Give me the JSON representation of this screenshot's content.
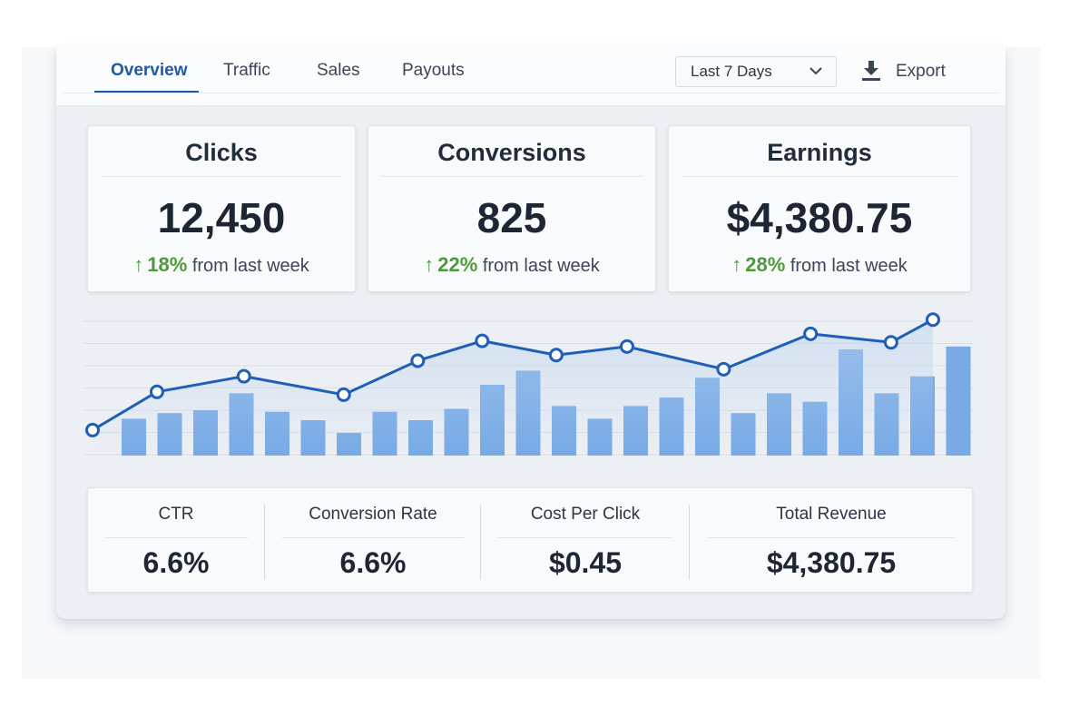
{
  "colors": {
    "accent": "#1e5aa8",
    "positive": "#4e9a3a",
    "bar": "#6ea4e4",
    "line": "#1f5fb8"
  },
  "tabs": [
    {
      "label": "Overview",
      "active": true
    },
    {
      "label": "Traffic",
      "active": false
    },
    {
      "label": "Sales",
      "active": false
    },
    {
      "label": "Payouts",
      "active": false
    }
  ],
  "toolbar": {
    "range_label": "Last 7 Days",
    "range_icon": "chevron-down-icon",
    "export_label": "Export",
    "export_icon": "download-icon"
  },
  "kpis": [
    {
      "title": "Clicks",
      "value": "12,450",
      "change_pct": "18",
      "change_suffix": "%",
      "change_text": "from last week"
    },
    {
      "title": "Conversions",
      "value": "825",
      "change_pct": "22",
      "change_suffix": "%",
      "change_text": "from last week"
    },
    {
      "title": "Earnings",
      "value": "$4,380.75",
      "change_pct": "28",
      "change_suffix": "%",
      "change_text": "from last week"
    }
  ],
  "chart_data": {
    "type": "bar",
    "grid": true,
    "ylim": [
      0,
      100
    ],
    "bars": [
      26,
      30,
      32,
      44,
      31,
      25,
      16,
      31,
      25,
      33,
      50,
      60,
      35,
      26,
      35,
      41,
      55,
      30,
      44,
      38,
      75,
      44,
      56,
      77
    ],
    "line": {
      "x": [
        0,
        1,
        2.35,
        3.9,
        5.05,
        6.05,
        7.2,
        8.3,
        9.8,
        11.15,
        12.4,
        13.05
      ],
      "y": [
        18,
        45,
        56,
        43,
        67,
        81,
        71,
        77,
        61,
        86,
        80,
        96
      ]
    }
  },
  "stats": [
    {
      "label": "CTR",
      "value": "6.6%"
    },
    {
      "label": "Conversion Rate",
      "value": "6.6%"
    },
    {
      "label": "Cost Per Click",
      "value": "$0.45"
    },
    {
      "label": "Total Revenue",
      "value": "$4,380.75"
    }
  ]
}
